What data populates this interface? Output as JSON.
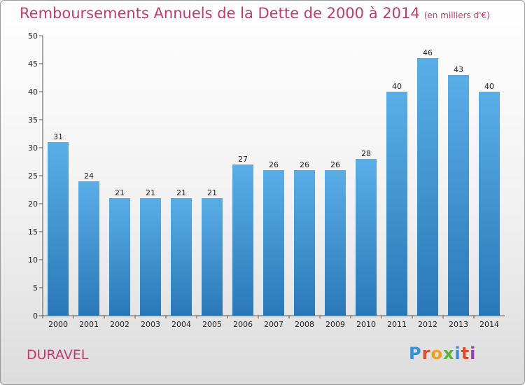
{
  "header": {
    "title": "Remboursements Annuels de la Dette de 2000 à 2014",
    "unit": "(en milliers d'€)"
  },
  "footer": {
    "place": "DURAVEL",
    "logo_text": "Proxiti",
    "logo_colors": [
      "#3a8ed8",
      "#e14d2a",
      "#f0a020",
      "#5ab43a",
      "#3a8ed8",
      "#e14d2a",
      "#9a3fb0"
    ]
  },
  "colors": {
    "accent": "#c03b6b",
    "bar_top": "#5aaee8",
    "bar_bottom": "#2a78b8"
  },
  "chart_data": {
    "type": "bar",
    "title": "Remboursements Annuels de la Dette de 2000 à 2014",
    "xlabel": "",
    "ylabel": "",
    "categories": [
      "2000",
      "2001",
      "2002",
      "2003",
      "2004",
      "2005",
      "2006",
      "2007",
      "2008",
      "2009",
      "2010",
      "2011",
      "2012",
      "2013",
      "2014"
    ],
    "values": [
      31,
      24,
      21,
      21,
      21,
      21,
      27,
      26,
      26,
      26,
      28,
      40,
      46,
      43,
      40
    ],
    "ylim": [
      0,
      50
    ],
    "yticks": [
      0,
      5,
      10,
      15,
      20,
      25,
      30,
      35,
      40,
      45,
      50
    ],
    "grid": false,
    "legend": "none"
  }
}
